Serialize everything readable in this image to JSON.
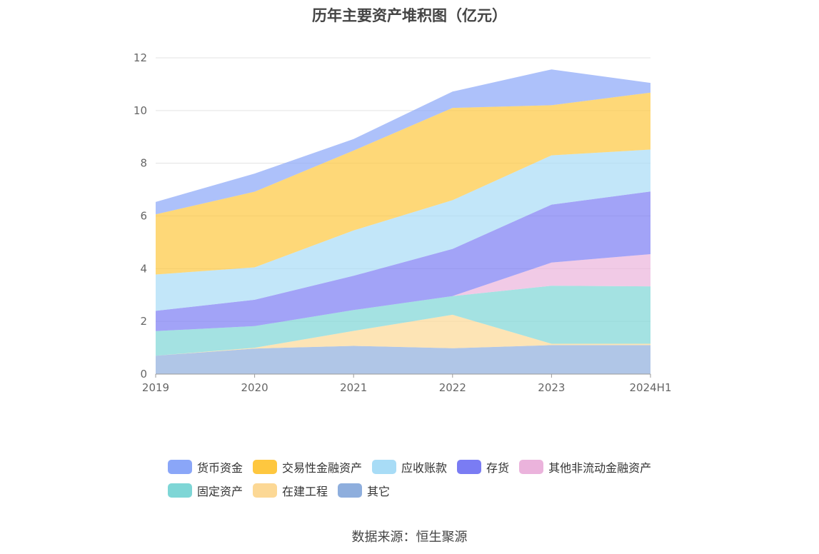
{
  "title": "历年主要资产堆积图（亿元）",
  "source": "数据来源：恒生聚源",
  "colors": {
    "货币资金": "#8aa6f8",
    "交易性金融资产": "#fec73f",
    "应收账款": "#a8dcf6",
    "存货": "#7a7cf3",
    "其他非流动金融资产": "#ebb3dc",
    "固定资产": "#7ed6d6",
    "在建工程": "#fcd895",
    "其它": "#8eaedd"
  },
  "chart_data": {
    "type": "area",
    "stacked": true,
    "title": "历年主要资产堆积图（亿元）",
    "categories": [
      "2019",
      "2020",
      "2021",
      "2022",
      "2023",
      "2024H1"
    ],
    "ylim": [
      0,
      12
    ],
    "yticks": [
      0,
      2,
      4,
      6,
      8,
      10,
      12
    ],
    "grid": true,
    "legend_position": "bottom",
    "series": [
      {
        "name": "其它",
        "values": [
          0.7,
          0.97,
          1.07,
          0.98,
          1.1,
          1.1
        ]
      },
      {
        "name": "在建工程",
        "values": [
          0.0,
          0.03,
          0.57,
          1.27,
          0.05,
          0.05
        ]
      },
      {
        "name": "固定资产",
        "values": [
          0.93,
          0.82,
          0.79,
          0.71,
          2.2,
          2.18
        ]
      },
      {
        "name": "其他非流动金融资产",
        "values": [
          0.0,
          0.0,
          0.0,
          0.0,
          0.88,
          1.22
        ]
      },
      {
        "name": "存货",
        "values": [
          0.77,
          1.0,
          1.3,
          1.79,
          2.2,
          2.38
        ]
      },
      {
        "name": "应收账款",
        "values": [
          1.38,
          1.23,
          1.72,
          1.85,
          1.87,
          1.59
        ]
      },
      {
        "name": "交易性金融资产",
        "values": [
          2.28,
          2.87,
          3.03,
          3.5,
          1.9,
          2.16
        ]
      },
      {
        "name": "货币资金",
        "values": [
          0.47,
          0.69,
          0.44,
          0.62,
          1.36,
          0.37
        ]
      }
    ]
  },
  "legend": {
    "rows": [
      [
        "货币资金",
        "交易性金融资产",
        "应收账款",
        "存货",
        "其他非流动金融资产"
      ],
      [
        "固定资产",
        "在建工程",
        "其它"
      ]
    ]
  }
}
